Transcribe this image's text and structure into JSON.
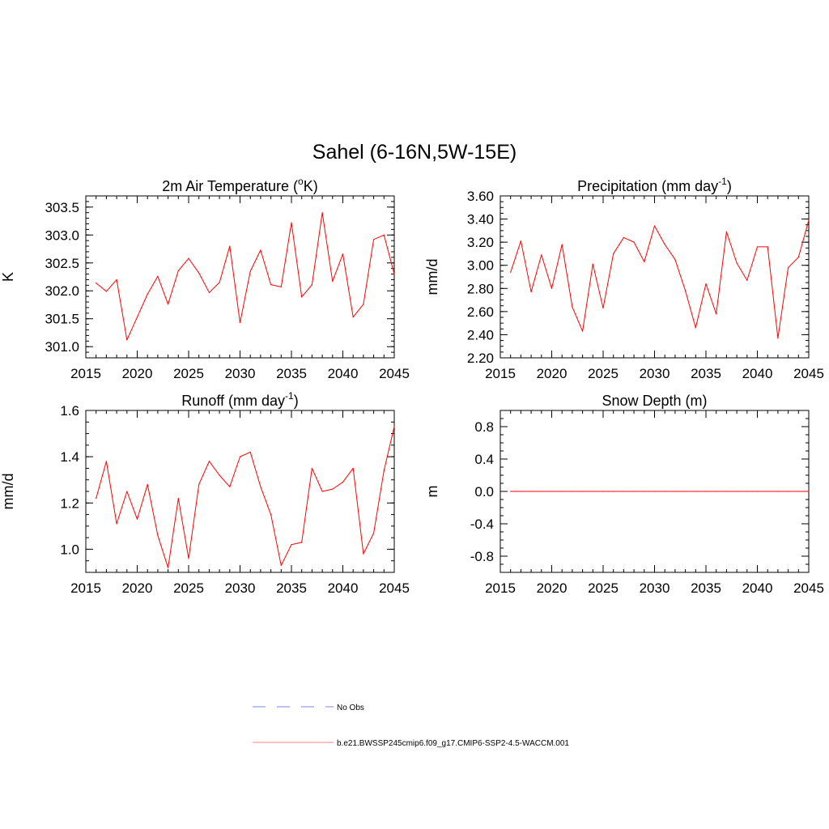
{
  "title": "Sahel (6-16N,5W-15E)",
  "colors": {
    "model_line": "#ff0000",
    "obs_line": "#9999ff",
    "axis": "#000000"
  },
  "legend": {
    "entries": [
      {
        "label": "No Obs",
        "style": "dashed",
        "color": "#9999ff"
      },
      {
        "label": "b.e21.BWSSP245cmip6.f09_g17.CMIP6-SSP2-4.5-WACCM.001",
        "style": "solid",
        "color": "#ff9999"
      }
    ]
  },
  "chart_data": [
    {
      "type": "line",
      "title": "2m Air Temperature (°K)",
      "title_main": "2m Air Temperature (",
      "title_sup": "o",
      "title_tail": "K)",
      "xlabel": "",
      "ylabel": "K",
      "xlim": [
        2015,
        2045
      ],
      "ylim": [
        300.8,
        303.7
      ],
      "xticks": [
        "2015",
        "2020",
        "2025",
        "2030",
        "2035",
        "2040",
        "2045"
      ],
      "yticks": [
        "301.0",
        "301.5",
        "302.0",
        "302.5",
        "303.0",
        "303.5"
      ],
      "x": [
        2016,
        2017,
        2018,
        2019,
        2020,
        2021,
        2022,
        2023,
        2024,
        2025,
        2026,
        2027,
        2028,
        2029,
        2030,
        2031,
        2032,
        2033,
        2034,
        2035,
        2036,
        2037,
        2038,
        2039,
        2040,
        2041,
        2042,
        2043,
        2044,
        2045
      ],
      "series": [
        {
          "name": "b.e21.BWSSP245cmip6.f09_g17.CMIP6-SSP2-4.5-WACCM.001",
          "values": [
            302.14,
            301.99,
            302.2,
            301.12,
            301.53,
            301.94,
            302.26,
            301.76,
            302.36,
            302.58,
            302.32,
            301.97,
            302.15,
            302.8,
            301.43,
            302.35,
            302.73,
            302.11,
            302.07,
            303.22,
            301.89,
            302.11,
            303.4,
            302.17,
            302.66,
            301.53,
            301.76,
            302.92,
            303.0,
            302.3
          ]
        }
      ]
    },
    {
      "type": "line",
      "title": "Precipitation (mm day-1)",
      "title_main": "Precipitation (mm day",
      "title_sup": "-1",
      "title_tail": ")",
      "xlabel": "",
      "ylabel": "mm/d",
      "xlim": [
        2015,
        2045
      ],
      "ylim": [
        2.2,
        3.6
      ],
      "xticks": [
        "2015",
        "2020",
        "2025",
        "2030",
        "2035",
        "2040",
        "2045"
      ],
      "yticks": [
        "2.20",
        "2.40",
        "2.60",
        "2.80",
        "3.00",
        "3.20",
        "3.40",
        "3.60"
      ],
      "x": [
        2016,
        2017,
        2018,
        2019,
        2020,
        2021,
        2022,
        2023,
        2024,
        2025,
        2026,
        2027,
        2028,
        2029,
        2030,
        2031,
        2032,
        2033,
        2034,
        2035,
        2036,
        2037,
        2038,
        2039,
        2040,
        2041,
        2042,
        2043,
        2044,
        2045
      ],
      "series": [
        {
          "name": "b.e21.BWSSP245cmip6.f09_g17.CMIP6-SSP2-4.5-WACCM.001",
          "values": [
            2.94,
            3.21,
            2.77,
            3.09,
            2.8,
            3.18,
            2.64,
            2.43,
            3.01,
            2.63,
            3.1,
            3.24,
            3.2,
            3.03,
            3.34,
            3.18,
            3.05,
            2.78,
            2.46,
            2.84,
            2.58,
            3.29,
            3.02,
            2.87,
            3.16,
            3.16,
            2.37,
            2.98,
            3.07,
            3.39
          ]
        }
      ]
    },
    {
      "type": "line",
      "title": "Runoff (mm day-1)",
      "title_main": "Runoff (mm day",
      "title_sup": "-1",
      "title_tail": ")",
      "xlabel": "",
      "ylabel": "mm/d",
      "xlim": [
        2015,
        2045
      ],
      "ylim": [
        0.9,
        1.6
      ],
      "xticks": [
        "2015",
        "2020",
        "2025",
        "2030",
        "2035",
        "2040",
        "2045"
      ],
      "yticks": [
        "1.0",
        "1.2",
        "1.4",
        "1.6"
      ],
      "x": [
        2016,
        2017,
        2018,
        2019,
        2020,
        2021,
        2022,
        2023,
        2024,
        2025,
        2026,
        2027,
        2028,
        2029,
        2030,
        2031,
        2032,
        2033,
        2034,
        2035,
        2036,
        2037,
        2038,
        2039,
        2040,
        2041,
        2042,
        2043,
        2044,
        2045
      ],
      "series": [
        {
          "name": "b.e21.BWSSP245cmip6.f09_g17.CMIP6-SSP2-4.5-WACCM.001",
          "values": [
            1.22,
            1.38,
            1.11,
            1.25,
            1.13,
            1.28,
            1.06,
            0.92,
            1.22,
            0.96,
            1.28,
            1.38,
            1.32,
            1.27,
            1.4,
            1.42,
            1.27,
            1.15,
            0.93,
            1.02,
            1.03,
            1.35,
            1.25,
            1.26,
            1.29,
            1.35,
            0.98,
            1.07,
            1.34,
            1.53
          ]
        }
      ]
    },
    {
      "type": "line",
      "title": "Snow Depth (m)",
      "title_main": "Snow Depth (m)",
      "title_sup": "",
      "title_tail": "",
      "xlabel": "",
      "ylabel": "m",
      "xlim": [
        2015,
        2045
      ],
      "ylim": [
        -1.0,
        1.0
      ],
      "xticks": [
        "2015",
        "2020",
        "2025",
        "2030",
        "2035",
        "2040",
        "2045"
      ],
      "yticks": [
        "-0.8",
        "-0.4",
        "0.0",
        "0.4",
        "0.8"
      ],
      "x": [
        2016,
        2017,
        2018,
        2019,
        2020,
        2021,
        2022,
        2023,
        2024,
        2025,
        2026,
        2027,
        2028,
        2029,
        2030,
        2031,
        2032,
        2033,
        2034,
        2035,
        2036,
        2037,
        2038,
        2039,
        2040,
        2041,
        2042,
        2043,
        2044,
        2045
      ],
      "series": [
        {
          "name": "b.e21.BWSSP245cmip6.f09_g17.CMIP6-SSP2-4.5-WACCM.001",
          "values": [
            0,
            0,
            0,
            0,
            0,
            0,
            0,
            0,
            0,
            0,
            0,
            0,
            0,
            0,
            0,
            0,
            0,
            0,
            0,
            0,
            0,
            0,
            0,
            0,
            0,
            0,
            0,
            0,
            0,
            0
          ]
        }
      ]
    }
  ]
}
